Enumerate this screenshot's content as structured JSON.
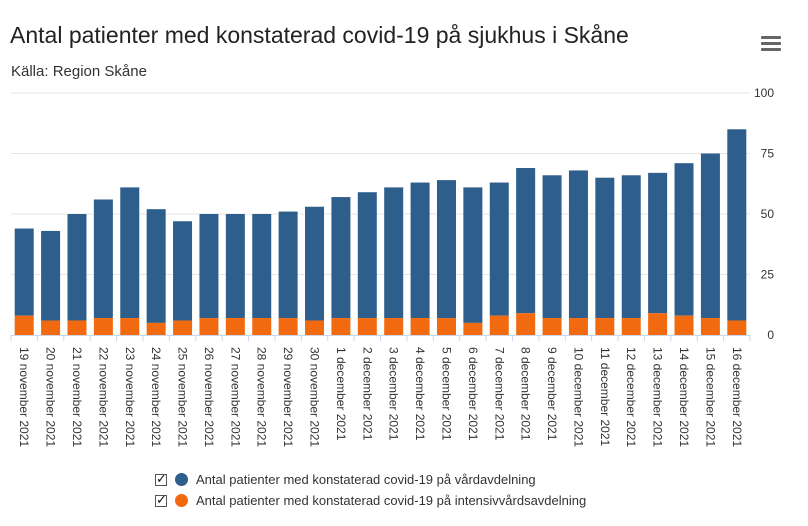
{
  "header": {
    "title": "Antal patienter med konstaterad covid-19 på sjukhus i Skåne",
    "subtitle": "Källa: Region Skåne",
    "menu_icon": "hamburger-menu-icon"
  },
  "colors": {
    "ward": "#2e5e8c",
    "icu": "#f26a10",
    "grid": "#e6e6e6"
  },
  "legend": {
    "ward_label": "Antal patienter med konstaterad covid-19 på vårdavdelning",
    "icu_label": "Antal patienter med konstaterad covid-19 på intensivvårdsavdelning"
  },
  "chart_data": {
    "type": "bar",
    "stacked": true,
    "title": "Antal patienter med konstaterad covid-19 på sjukhus i Skåne",
    "subtitle": "Källa: Region Skåne",
    "xlabel": "",
    "ylabel": "",
    "ylim": [
      0,
      100
    ],
    "yticks": [
      0,
      25,
      50,
      75,
      100
    ],
    "y_axis_side": "right",
    "grid": true,
    "legend_position": "bottom",
    "categories": [
      "19 november 2021",
      "20 november 2021",
      "21 november 2021",
      "22 november 2021",
      "23 november 2021",
      "24 november 2021",
      "25 november 2021",
      "26 november 2021",
      "27 november 2021",
      "28 november 2021",
      "29 november 2021",
      "30 november 2021",
      "1 december 2021",
      "2 december 2021",
      "3 december 2021",
      "4 december 2021",
      "5 december 2021",
      "6 december 2021",
      "7 december 2021",
      "8 december 2021",
      "9 december 2021",
      "10 december 2021",
      "11 december 2021",
      "12 december 2021",
      "13 december 2021",
      "14 december 2021",
      "15 december 2021",
      "16 december 2021"
    ],
    "series": [
      {
        "name": "Antal patienter med konstaterad covid-19 på vårdavdelning",
        "values": [
          36,
          37,
          44,
          49,
          54,
          47,
          41,
          43,
          43,
          43,
          44,
          47,
          50,
          52,
          54,
          56,
          57,
          56,
          55,
          60,
          59,
          61,
          58,
          59,
          58,
          63,
          68,
          79
        ]
      },
      {
        "name": "Antal patienter med konstaterad covid-19 på intensivvårdsavdelning",
        "values": [
          8,
          6,
          6,
          7,
          7,
          5,
          6,
          7,
          7,
          7,
          7,
          6,
          7,
          7,
          7,
          7,
          7,
          5,
          8,
          9,
          7,
          7,
          7,
          7,
          9,
          8,
          7,
          6
        ]
      }
    ]
  }
}
